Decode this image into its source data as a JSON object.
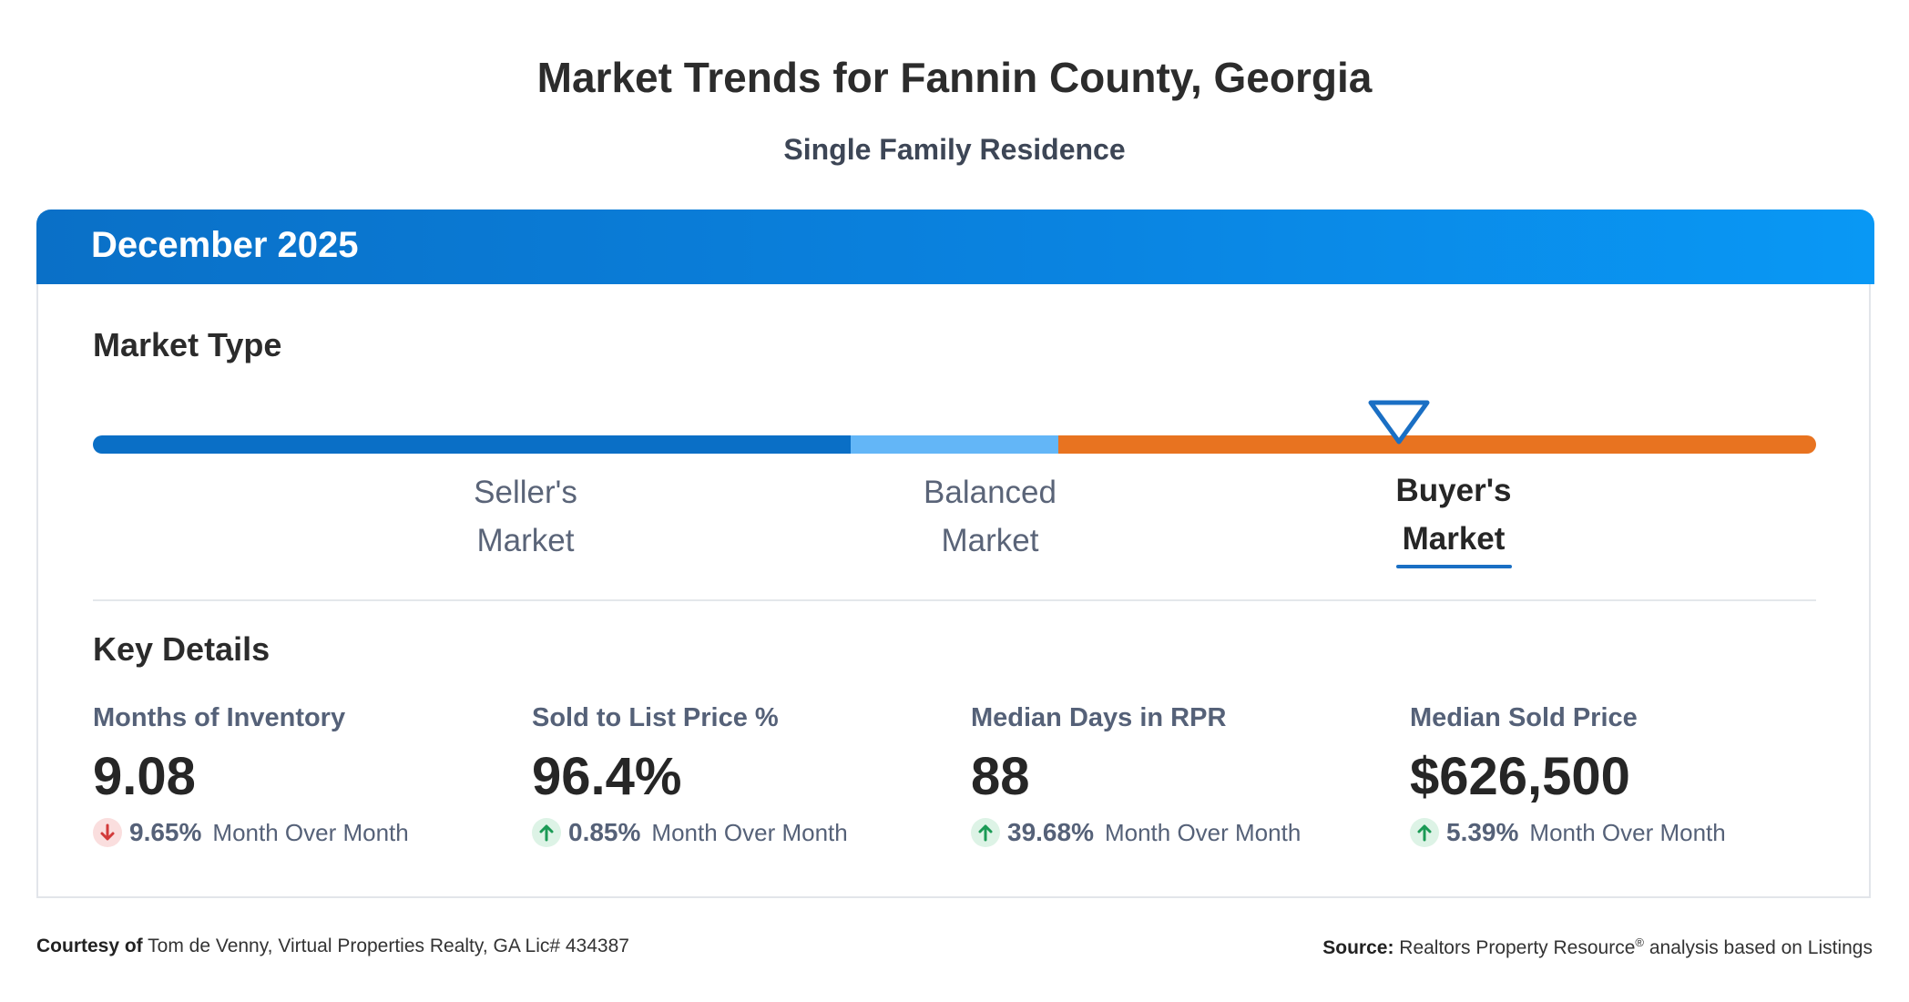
{
  "page": {
    "title": "Market Trends for Fannin County, Georgia",
    "subtitle": "Single Family Residence"
  },
  "card": {
    "period": "December 2025",
    "market_type": {
      "heading": "Market Type",
      "bar_colors": {
        "sellers": "#0a6fc6",
        "balanced": "#63b6f7",
        "buyers": "#e87320"
      },
      "current": "Buyer's Market",
      "segments": [
        {
          "line1": "Seller's",
          "line2": "Market",
          "active": false
        },
        {
          "line1": "Balanced",
          "line2": "Market",
          "active": false
        },
        {
          "line1": "Buyer's",
          "line2": "Market",
          "active": true
        }
      ]
    },
    "key_details": {
      "heading": "Key Details",
      "metrics": [
        {
          "label": "Months of Inventory",
          "value": "9.08",
          "change": "9.65%",
          "direction": "down",
          "change_label": "Month Over Month"
        },
        {
          "label": "Sold to List Price %",
          "value": "96.4%",
          "change": "0.85%",
          "direction": "up",
          "change_label": "Month Over Month"
        },
        {
          "label": "Median Days in RPR",
          "value": "88",
          "change": "39.68%",
          "direction": "up",
          "change_label": "Month Over Month"
        },
        {
          "label": "Median Sold Price",
          "value": "$626,500",
          "change": "5.39%",
          "direction": "up",
          "change_label": "Month Over Month"
        }
      ]
    }
  },
  "footer": {
    "courtesy_label": "Courtesy of",
    "courtesy_text": " Tom de Venny, Virtual Properties Realty, GA Lic# 434387",
    "source_label": "Source:",
    "source_text_1": " Realtors Property Resource",
    "source_reg": "®",
    "source_text_2": " analysis based on Listings"
  },
  "icons": {
    "up": "arrow-up-icon",
    "down": "arrow-down-icon",
    "marker": "triangle-down-icon"
  },
  "colors": {
    "up_arrow": "#1a9a55",
    "down_arrow": "#d23a3a",
    "header": "#0a78d4"
  }
}
